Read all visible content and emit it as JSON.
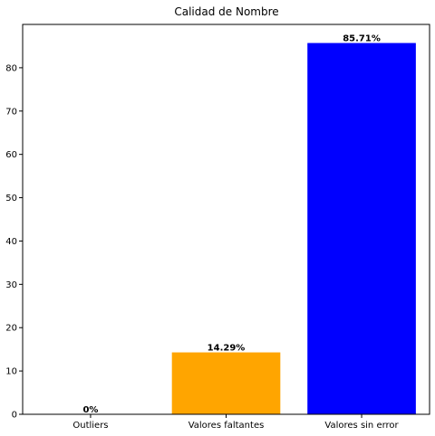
{
  "chart_data": {
    "type": "bar",
    "title": "Calidad de Nombre",
    "xlabel": "",
    "ylabel": "",
    "categories": [
      "Outliers",
      "Valores faltantes",
      "Valores sin error"
    ],
    "values": [
      0,
      14.29,
      85.71
    ],
    "data_labels": [
      "0%",
      "14.29%",
      "85.71%"
    ],
    "colors": [
      "#ff0000",
      "#ffa500",
      "#0000ff"
    ],
    "ylim": [
      0,
      90
    ],
    "yticks": [
      0,
      10,
      20,
      30,
      40,
      50,
      60,
      70,
      80
    ],
    "grid": false,
    "legend": "none"
  }
}
